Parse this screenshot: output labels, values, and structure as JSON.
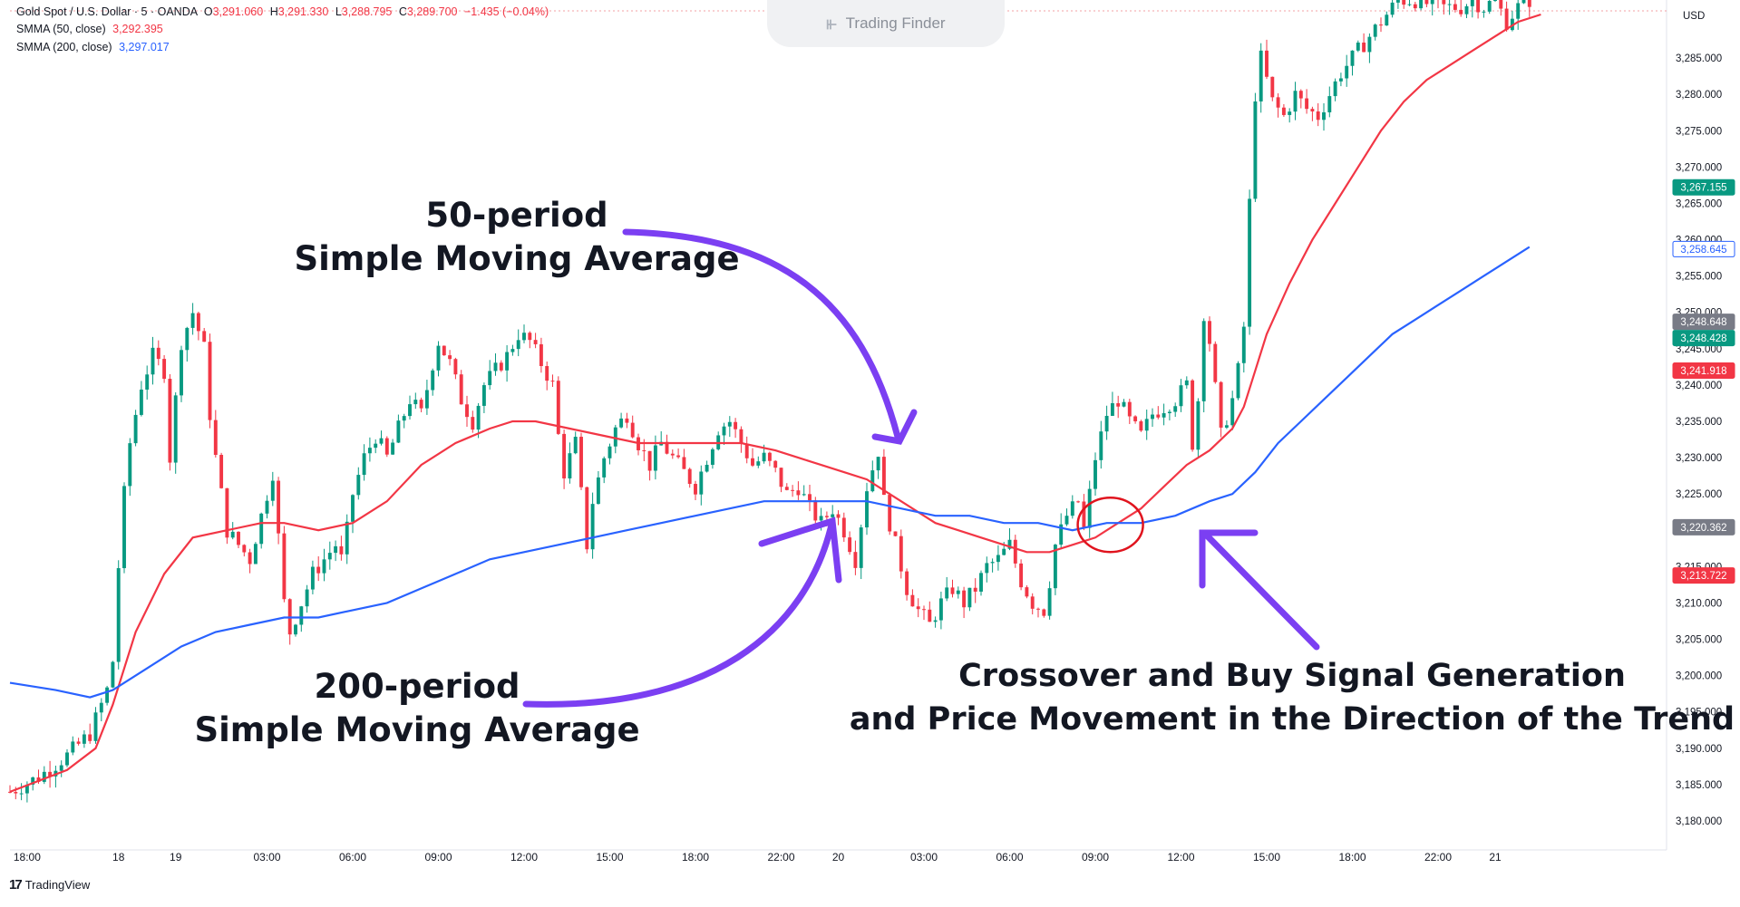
{
  "header": {
    "symbol_line": "Gold Spot / U.S. Dollar · 5 · OANDA",
    "ohlc": {
      "o_label": "O",
      "o": "3,291.060",
      "h_label": "H",
      "h": "3,291.330",
      "l_label": "L",
      "l": "3,288.795",
      "c_label": "C",
      "c": "3,289.700",
      "change": "−1.435 (−0.04%)"
    },
    "indicator1": {
      "label": "SMMA (50, close)",
      "value": "3,292.395"
    },
    "indicator2": {
      "label": "SMMA (200, close)",
      "value": "3,297.017"
    }
  },
  "brand": {
    "text": "Trading Finder"
  },
  "footer": {
    "platform": "TradingView"
  },
  "colors": {
    "up": "#089981",
    "down": "#f23645",
    "smma50": "#f23645",
    "smma200": "#2962ff",
    "annotation": "#7b3ff2"
  },
  "chart_data": {
    "type": "line",
    "currency": "USD",
    "ylim": [
      3176,
      3293
    ],
    "y_ticks": [
      3180,
      3185,
      3190,
      3195,
      3200,
      3205,
      3210,
      3215,
      3220,
      3225,
      3230,
      3235,
      3240,
      3245,
      3250,
      3255,
      3260,
      3265,
      3270,
      3275,
      3280,
      3285
    ],
    "y_tick_labels": [
      "3,180.000",
      "3,185.000",
      "3,190.000",
      "3,195.000",
      "3,200.000",
      "3,205.000",
      "3,210.000",
      "3,215.000",
      "3,220.000",
      "3,225.000",
      "3,230.000",
      "3,235.000",
      "3,240.000",
      "3,245.000",
      "3,250.000",
      "3,255.000",
      "3,260.000",
      "3,265.000",
      "3,270.000",
      "3,275.000",
      "3,280.000",
      "3,285.000"
    ],
    "x_range": [
      0,
      290
    ],
    "x_ticks": [
      {
        "x": 3,
        "label": "18:00"
      },
      {
        "x": 19,
        "label": "18"
      },
      {
        "x": 29,
        "label": "19"
      },
      {
        "x": 45,
        "label": "03:00"
      },
      {
        "x": 60,
        "label": "06:00"
      },
      {
        "x": 75,
        "label": "09:00"
      },
      {
        "x": 90,
        "label": "12:00"
      },
      {
        "x": 105,
        "label": "15:00"
      },
      {
        "x": 120,
        "label": "18:00"
      },
      {
        "x": 135,
        "label": "22:00"
      },
      {
        "x": 145,
        "label": "20"
      },
      {
        "x": 160,
        "label": "03:00"
      },
      {
        "x": 175,
        "label": "06:00"
      },
      {
        "x": 190,
        "label": "09:00"
      },
      {
        "x": 205,
        "label": "12:00"
      },
      {
        "x": 220,
        "label": "15:00"
      },
      {
        "x": 235,
        "label": "18:00"
      },
      {
        "x": 250,
        "label": "22:00"
      },
      {
        "x": 260,
        "label": "21"
      }
    ],
    "price_path": [
      [
        0,
        3184
      ],
      [
        5,
        3186
      ],
      [
        10,
        3189
      ],
      [
        14,
        3192
      ],
      [
        17,
        3198
      ],
      [
        18,
        3202
      ],
      [
        19,
        3215
      ],
      [
        20,
        3225
      ],
      [
        21,
        3232
      ],
      [
        23,
        3240
      ],
      [
        25,
        3244
      ],
      [
        27,
        3242
      ],
      [
        28,
        3230
      ],
      [
        30,
        3246
      ],
      [
        32,
        3250
      ],
      [
        34,
        3245
      ],
      [
        35,
        3236
      ],
      [
        36,
        3230
      ],
      [
        38,
        3220
      ],
      [
        40,
        3218
      ],
      [
        42,
        3216
      ],
      [
        44,
        3222
      ],
      [
        46,
        3228
      ],
      [
        47,
        3219
      ],
      [
        48,
        3210
      ],
      [
        49,
        3206
      ],
      [
        51,
        3210
      ],
      [
        53,
        3214
      ],
      [
        55,
        3216
      ],
      [
        57,
        3218
      ],
      [
        58,
        3216
      ],
      [
        59,
        3220
      ],
      [
        60,
        3225
      ],
      [
        62,
        3230
      ],
      [
        64,
        3233
      ],
      [
        66,
        3230
      ],
      [
        68,
        3234
      ],
      [
        70,
        3238
      ],
      [
        72,
        3236
      ],
      [
        74,
        3243
      ],
      [
        75,
        3246
      ],
      [
        77,
        3243
      ],
      [
        79,
        3238
      ],
      [
        81,
        3235
      ],
      [
        83,
        3240
      ],
      [
        85,
        3242
      ],
      [
        87,
        3244
      ],
      [
        89,
        3247
      ],
      [
        91,
        3246
      ],
      [
        93,
        3243
      ],
      [
        95,
        3240
      ],
      [
        96,
        3233
      ],
      [
        97,
        3228
      ],
      [
        99,
        3232
      ],
      [
        100,
        3225
      ],
      [
        101,
        3218
      ],
      [
        102,
        3224
      ],
      [
        104,
        3230
      ],
      [
        106,
        3234
      ],
      [
        108,
        3236
      ],
      [
        110,
        3232
      ],
      [
        112,
        3229
      ],
      [
        114,
        3232
      ],
      [
        116,
        3230
      ],
      [
        118,
        3228
      ],
      [
        120,
        3226
      ],
      [
        122,
        3230
      ],
      [
        124,
        3234
      ],
      [
        126,
        3235
      ],
      [
        128,
        3232
      ],
      [
        130,
        3229
      ],
      [
        132,
        3230
      ],
      [
        134,
        3228
      ],
      [
        136,
        3225
      ],
      [
        138,
        3226
      ],
      [
        140,
        3223
      ],
      [
        142,
        3221
      ],
      [
        144,
        3223
      ],
      [
        146,
        3220
      ],
      [
        148,
        3216
      ],
      [
        150,
        3226
      ],
      [
        152,
        3231
      ],
      [
        153,
        3224
      ],
      [
        155,
        3218
      ],
      [
        157,
        3212
      ],
      [
        159,
        3209
      ],
      [
        161,
        3207
      ],
      [
        163,
        3210
      ],
      [
        165,
        3212
      ],
      [
        167,
        3210
      ],
      [
        169,
        3212
      ],
      [
        171,
        3215
      ],
      [
        173,
        3216
      ],
      [
        175,
        3218
      ],
      [
        177,
        3213
      ],
      [
        179,
        3210
      ],
      [
        181,
        3209
      ],
      [
        182,
        3213
      ],
      [
        183,
        3218
      ],
      [
        185,
        3222
      ],
      [
        187,
        3224
      ],
      [
        188,
        3220
      ],
      [
        190,
        3230
      ],
      [
        192,
        3236
      ],
      [
        194,
        3238
      ],
      [
        196,
        3235
      ],
      [
        198,
        3233
      ],
      [
        200,
        3236
      ],
      [
        202,
        3237
      ],
      [
        204,
        3238
      ],
      [
        206,
        3240
      ],
      [
        207,
        3232
      ],
      [
        208,
        3238
      ],
      [
        209,
        3250
      ],
      [
        210,
        3246
      ],
      [
        212,
        3233
      ],
      [
        214,
        3238
      ],
      [
        215,
        3242
      ],
      [
        216,
        3248
      ],
      [
        217,
        3265
      ],
      [
        218,
        3280
      ],
      [
        219,
        3285
      ],
      [
        220,
        3282
      ],
      [
        221,
        3279
      ],
      [
        223,
        3277
      ],
      [
        225,
        3280
      ],
      [
        227,
        3278
      ],
      [
        229,
        3277
      ],
      [
        231,
        3280
      ],
      [
        233,
        3283
      ],
      [
        235,
        3285
      ],
      [
        237,
        3287
      ],
      [
        239,
        3289
      ],
      [
        241,
        3291
      ],
      [
        243,
        3293
      ],
      [
        246,
        3293
      ],
      [
        250,
        3292
      ],
      [
        254,
        3292
      ],
      [
        256,
        3293
      ],
      [
        258,
        3292
      ],
      [
        260,
        3293
      ],
      [
        262,
        3290
      ],
      [
        264,
        3292
      ],
      [
        266,
        3293
      ]
    ],
    "series": [
      {
        "name": "SMMA (50, close)",
        "color": "#f23645",
        "points": [
          [
            0,
            3184
          ],
          [
            10,
            3187
          ],
          [
            15,
            3190
          ],
          [
            18,
            3196
          ],
          [
            22,
            3206
          ],
          [
            27,
            3214
          ],
          [
            32,
            3219
          ],
          [
            38,
            3220
          ],
          [
            44,
            3221
          ],
          [
            48,
            3221
          ],
          [
            54,
            3220
          ],
          [
            60,
            3221
          ],
          [
            66,
            3224
          ],
          [
            72,
            3229
          ],
          [
            78,
            3232
          ],
          [
            84,
            3234
          ],
          [
            88,
            3235
          ],
          [
            92,
            3235
          ],
          [
            98,
            3234
          ],
          [
            104,
            3233
          ],
          [
            110,
            3232
          ],
          [
            116,
            3232
          ],
          [
            122,
            3232
          ],
          [
            128,
            3232
          ],
          [
            134,
            3231
          ],
          [
            138,
            3230
          ],
          [
            142,
            3229
          ],
          [
            146,
            3228
          ],
          [
            150,
            3227
          ],
          [
            154,
            3225
          ],
          [
            158,
            3223
          ],
          [
            162,
            3221
          ],
          [
            166,
            3220
          ],
          [
            170,
            3219
          ],
          [
            174,
            3218
          ],
          [
            178,
            3217
          ],
          [
            182,
            3217
          ],
          [
            186,
            3218
          ],
          [
            190,
            3219
          ],
          [
            194,
            3221
          ],
          [
            198,
            3223
          ],
          [
            202,
            3226
          ],
          [
            206,
            3229
          ],
          [
            210,
            3231
          ],
          [
            214,
            3234
          ],
          [
            216,
            3237
          ],
          [
            218,
            3242
          ],
          [
            220,
            3247
          ],
          [
            224,
            3254
          ],
          [
            228,
            3260
          ],
          [
            232,
            3265
          ],
          [
            236,
            3270
          ],
          [
            240,
            3275
          ],
          [
            244,
            3279
          ],
          [
            248,
            3282
          ],
          [
            252,
            3284
          ],
          [
            256,
            3286
          ],
          [
            260,
            3288
          ],
          [
            264,
            3290
          ],
          [
            268,
            3291
          ]
        ]
      },
      {
        "name": "SMMA (200, close)",
        "color": "#2962ff",
        "points": [
          [
            0,
            3199
          ],
          [
            8,
            3198
          ],
          [
            14,
            3197
          ],
          [
            18,
            3198
          ],
          [
            24,
            3201
          ],
          [
            30,
            3204
          ],
          [
            36,
            3206
          ],
          [
            42,
            3207
          ],
          [
            48,
            3208
          ],
          [
            54,
            3208
          ],
          [
            60,
            3209
          ],
          [
            66,
            3210
          ],
          [
            72,
            3212
          ],
          [
            78,
            3214
          ],
          [
            84,
            3216
          ],
          [
            90,
            3217
          ],
          [
            96,
            3218
          ],
          [
            102,
            3219
          ],
          [
            108,
            3220
          ],
          [
            114,
            3221
          ],
          [
            120,
            3222
          ],
          [
            126,
            3223
          ],
          [
            132,
            3224
          ],
          [
            138,
            3224
          ],
          [
            144,
            3224
          ],
          [
            150,
            3224
          ],
          [
            156,
            3223
          ],
          [
            162,
            3222
          ],
          [
            168,
            3222
          ],
          [
            174,
            3221
          ],
          [
            180,
            3221
          ],
          [
            186,
            3220
          ],
          [
            192,
            3221
          ],
          [
            198,
            3221
          ],
          [
            204,
            3222
          ],
          [
            210,
            3224
          ],
          [
            214,
            3225
          ],
          [
            218,
            3228
          ],
          [
            222,
            3232
          ],
          [
            226,
            3235
          ],
          [
            230,
            3238
          ],
          [
            234,
            3241
          ],
          [
            238,
            3244
          ],
          [
            242,
            3247
          ],
          [
            246,
            3249
          ],
          [
            250,
            3251
          ],
          [
            254,
            3253
          ],
          [
            258,
            3255
          ],
          [
            262,
            3257
          ],
          [
            266,
            3259
          ]
        ]
      }
    ],
    "price_labels": [
      {
        "value": 3267.155,
        "text": "3,267.155",
        "style": "filled",
        "color": "#089981"
      },
      {
        "value": 3258.645,
        "text": "3,258.645",
        "style": "outline",
        "color": "#2962ff"
      },
      {
        "value": 3248.648,
        "text": "3,248.648",
        "style": "filled",
        "color": "#787b86"
      },
      {
        "value": 3248.428,
        "text": "3,248.428",
        "style": "filled",
        "color": "#089981"
      },
      {
        "value": 3241.918,
        "text": "3,241.918",
        "style": "filled",
        "color": "#f23645"
      },
      {
        "value": 3220.362,
        "text": "3,220.362",
        "style": "filled",
        "color": "#787b86"
      },
      {
        "value": 3213.722,
        "text": "3,213.722",
        "style": "filled",
        "color": "#f23645"
      }
    ],
    "annotations": [
      {
        "lines": [
          "50-period",
          "Simple Moving Average"
        ]
      },
      {
        "lines": [
          "200-period",
          "Simple Moving Average"
        ]
      },
      {
        "lines": [
          "Crossover and Buy Signal Generation",
          "and Price Movement in the Direction of the Trend"
        ]
      }
    ],
    "crossover_point": {
      "x": 192,
      "y": 3221
    }
  }
}
